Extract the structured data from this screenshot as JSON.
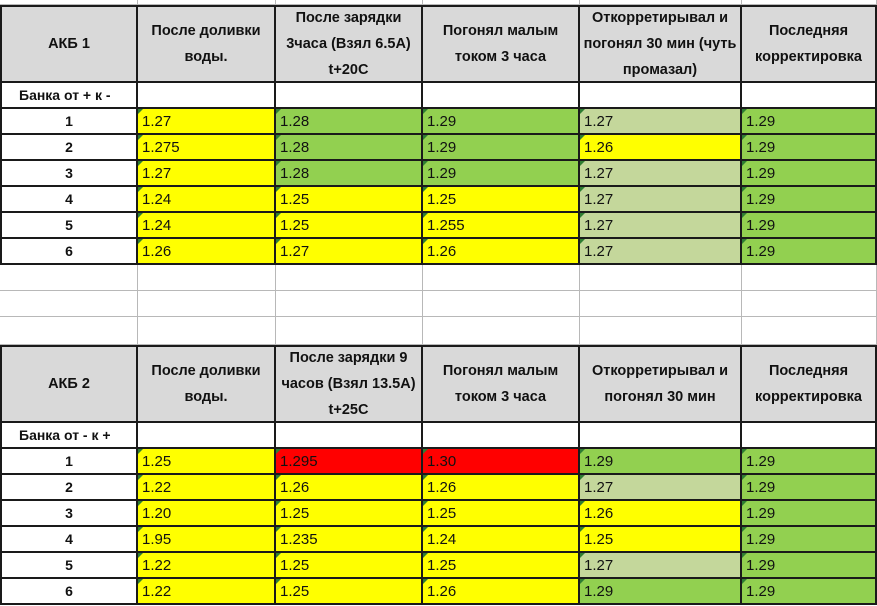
{
  "colors": {
    "yellow": "#ffff00",
    "green": "#92d050",
    "light_green": "#c4d79b",
    "red": "#ff0000",
    "header_gray": "#d9d9d9"
  },
  "tables": [
    {
      "title": "АКБ 1",
      "headers": [
        "После доливки воды.",
        "После зарядки 3часа (Взял 6.5А) t+20С",
        "Погонял малым током 3 часа",
        "Откорретирывал и погонял 30 мин (чуть промазал)",
        "Последняя корректировка"
      ],
      "bank_label": "Банка от + к -",
      "rows": [
        {
          "bank": "1",
          "values": [
            "1.27",
            "1.28",
            "1.29",
            "1.27",
            "1.29"
          ],
          "colors": [
            "yellow",
            "green",
            "green",
            "light_green",
            "green"
          ]
        },
        {
          "bank": "2",
          "values": [
            "1.275",
            "1.28",
            "1.29",
            "1.26",
            "1.29"
          ],
          "colors": [
            "yellow",
            "green",
            "green",
            "yellow",
            "green"
          ]
        },
        {
          "bank": "3",
          "values": [
            "1.27",
            "1.28",
            "1.29",
            "1.27",
            "1.29"
          ],
          "colors": [
            "yellow",
            "green",
            "green",
            "light_green",
            "green"
          ]
        },
        {
          "bank": "4",
          "values": [
            "1.24",
            "1.25",
            "1.25",
            "1.27",
            "1.29"
          ],
          "colors": [
            "yellow",
            "yellow",
            "yellow",
            "light_green",
            "green"
          ]
        },
        {
          "bank": "5",
          "values": [
            "1.24",
            "1.25",
            "1.255",
            "1.27",
            "1.29"
          ],
          "colors": [
            "yellow",
            "yellow",
            "yellow",
            "light_green",
            "green"
          ]
        },
        {
          "bank": "6",
          "values": [
            "1.26",
            "1.27",
            "1.26",
            "1.27",
            "1.29"
          ],
          "colors": [
            "yellow",
            "yellow",
            "yellow",
            "light_green",
            "green"
          ]
        }
      ]
    },
    {
      "title": "АКБ 2",
      "headers": [
        "После доливки воды.",
        "После зарядки 9 часов (Взял 13.5А) t+25С",
        "Погонял малым током 3 часа",
        "Откорретирывал и погонял 30 мин",
        "Последняя корректировка"
      ],
      "bank_label": "Банка от - к +",
      "rows": [
        {
          "bank": "1",
          "values": [
            "1.25",
            "1.295",
            "1.30",
            "1.29",
            "1.29"
          ],
          "colors": [
            "yellow",
            "red",
            "red",
            "green",
            "green"
          ]
        },
        {
          "bank": "2",
          "values": [
            "1.22",
            "1.26",
            "1.26",
            "1.27",
            "1.29"
          ],
          "colors": [
            "yellow",
            "yellow",
            "yellow",
            "light_green",
            "green"
          ]
        },
        {
          "bank": "3",
          "values": [
            "1.20",
            "1.25",
            "1.25",
            "1.26",
            "1.29"
          ],
          "colors": [
            "yellow",
            "yellow",
            "yellow",
            "yellow",
            "green"
          ]
        },
        {
          "bank": "4",
          "values": [
            "1.95",
            "1.235",
            "1.24",
            "1.25",
            "1.29"
          ],
          "colors": [
            "yellow",
            "yellow",
            "yellow",
            "yellow",
            "green"
          ]
        },
        {
          "bank": "5",
          "values": [
            "1.22",
            "1.25",
            "1.25",
            "1.27",
            "1.29"
          ],
          "colors": [
            "yellow",
            "yellow",
            "yellow",
            "light_green",
            "green"
          ]
        },
        {
          "bank": "6",
          "values": [
            "1.22",
            "1.25",
            "1.26",
            "1.29",
            "1.29"
          ],
          "colors": [
            "yellow",
            "yellow",
            "yellow",
            "green",
            "green"
          ]
        }
      ]
    }
  ]
}
